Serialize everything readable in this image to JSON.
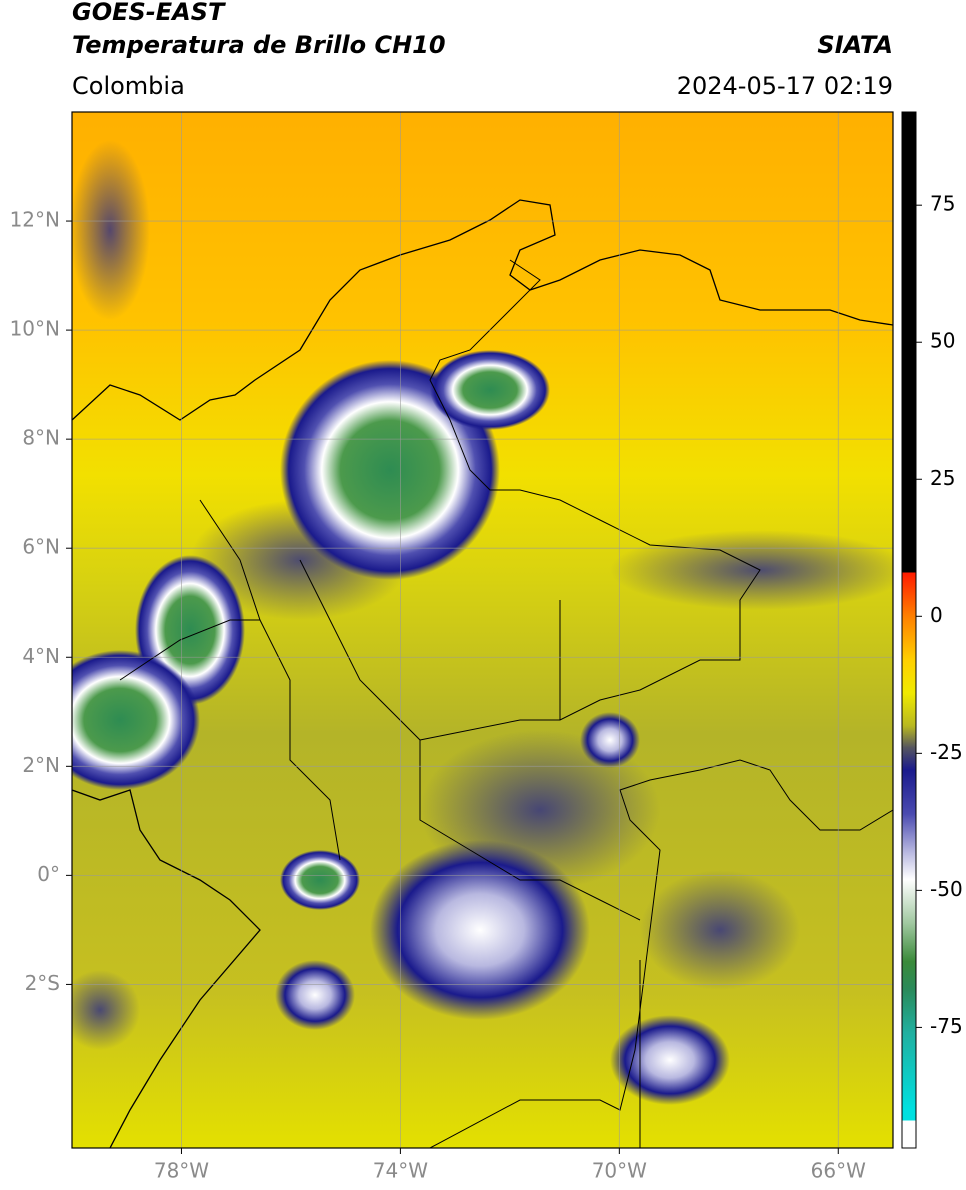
{
  "header": {
    "title": "GOES-EAST",
    "subtitle": "Temperatura de Brillo CH10",
    "source": "SIATA",
    "region": "Colombia",
    "timestamp": "2024-05-17 02:19"
  },
  "map": {
    "xlim": [
      -80,
      -65
    ],
    "ylim": [
      -5,
      14
    ],
    "xticks": [
      {
        "value": -78,
        "label": "78°W"
      },
      {
        "value": -74,
        "label": "74°W"
      },
      {
        "value": -70,
        "label": "70°W"
      },
      {
        "value": -66,
        "label": "66°W"
      }
    ],
    "yticks": [
      {
        "value": 12,
        "label": "12°N"
      },
      {
        "value": 10,
        "label": "10°N"
      },
      {
        "value": 8,
        "label": "8°N"
      },
      {
        "value": 6,
        "label": "6°N"
      },
      {
        "value": 4,
        "label": "4°N"
      },
      {
        "value": 2,
        "label": "2°N"
      },
      {
        "value": 0,
        "label": "0°"
      },
      {
        "value": -2,
        "label": "2°S"
      }
    ],
    "grid": true
  },
  "colorbar": {
    "lim": [
      -97,
      92
    ],
    "ticks": [
      75,
      50,
      25,
      0,
      -25,
      -50,
      -75
    ],
    "colors": [
      {
        "value": 92,
        "color": "#000000"
      },
      {
        "value": 8,
        "color": "#000000"
      },
      {
        "value": 8,
        "color": "#ff1a00"
      },
      {
        "value": 0,
        "color": "#ff8000"
      },
      {
        "value": -8,
        "color": "#ffd000"
      },
      {
        "value": -14,
        "color": "#f0ea00"
      },
      {
        "value": -20,
        "color": "#b8b820"
      },
      {
        "value": -24,
        "color": "#555560"
      },
      {
        "value": -28,
        "color": "#1a1a8c"
      },
      {
        "value": -36,
        "color": "#4a4ab0"
      },
      {
        "value": -43,
        "color": "#b8b8e0"
      },
      {
        "value": -48,
        "color": "#ffffff"
      },
      {
        "value": -56,
        "color": "#a0c8a0"
      },
      {
        "value": -63,
        "color": "#3a8a3a"
      },
      {
        "value": -68,
        "color": "#2a8a5a"
      },
      {
        "value": -76,
        "color": "#20b0a0"
      },
      {
        "value": -90,
        "color": "#00e0e0"
      },
      {
        "value": -92,
        "color": "#00e0e0"
      },
      {
        "value": -92,
        "color": "#ffffff"
      },
      {
        "value": -97,
        "color": "#ffffff"
      }
    ]
  }
}
